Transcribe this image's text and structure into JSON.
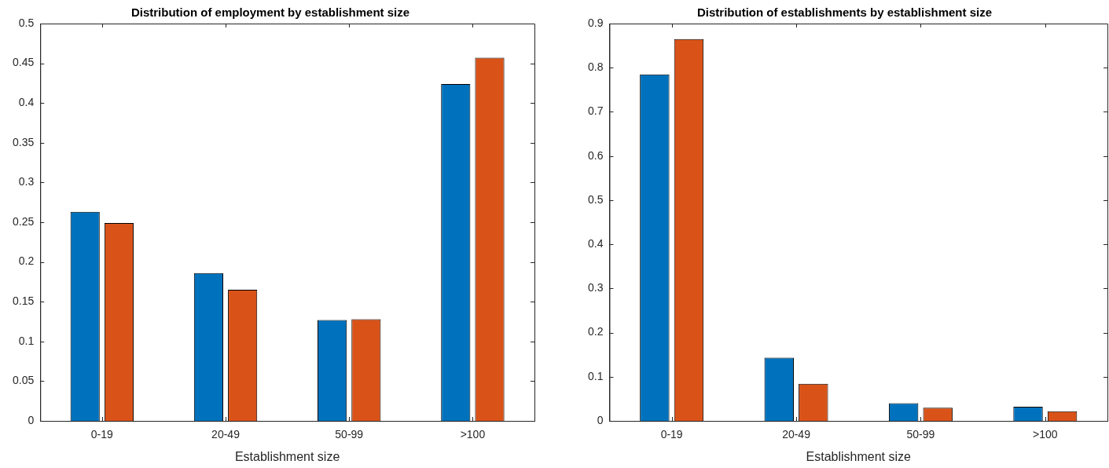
{
  "chart_data": [
    {
      "type": "bar",
      "title": "Distribution of employment by establishment size",
      "xlabel": "Establishment size",
      "categories": [
        "0-19",
        "20-49",
        "50-99",
        ">100"
      ],
      "series": [
        {
          "color": "#0072bd",
          "values": [
            0.263,
            0.186,
            0.127,
            0.424
          ]
        },
        {
          "color": "#d95319",
          "values": [
            0.249,
            0.165,
            0.128,
            0.457
          ]
        }
      ],
      "ylim": [
        0,
        0.5
      ],
      "yticks": [
        0,
        0.05,
        0.1,
        0.15,
        0.2,
        0.25,
        0.3,
        0.35,
        0.4,
        0.45,
        0.5
      ]
    },
    {
      "type": "bar",
      "title": "Distribution of establishments by establishment size",
      "xlabel": "Establishment size",
      "categories": [
        "0-19",
        "20-49",
        "50-99",
        ">100"
      ],
      "series": [
        {
          "color": "#0072bd",
          "values": [
            0.785,
            0.143,
            0.04,
            0.032
          ]
        },
        {
          "color": "#d95319",
          "values": [
            0.865,
            0.084,
            0.03,
            0.022
          ]
        }
      ],
      "ylim": [
        0,
        0.9
      ],
      "yticks": [
        0,
        0.1,
        0.2,
        0.3,
        0.4,
        0.5,
        0.6,
        0.7,
        0.8,
        0.9
      ]
    }
  ]
}
